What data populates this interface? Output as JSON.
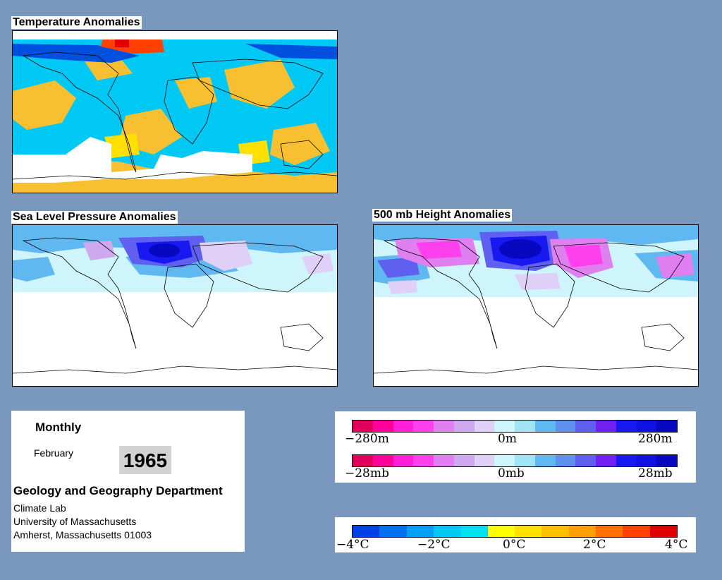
{
  "maps": {
    "temperature": {
      "title": "Temperature Anomalies"
    },
    "slp": {
      "title": "Sea Level Pressure Anomalies"
    },
    "height": {
      "title": "500 mb Height Anomalies"
    }
  },
  "info": {
    "period": "Monthly",
    "month": "February",
    "year": "1965",
    "department": "Geology and Geography Department",
    "lab": "Climate Lab",
    "university": "University of Massachusetts",
    "address": "Amherst, Massachusetts 01003"
  },
  "legend_height": {
    "left": "−280m",
    "center": "0m",
    "right": "280m",
    "colors": [
      "#e0005c",
      "#ff0098",
      "#ff20d8",
      "#ff40ee",
      "#e080f0",
      "#d0a8f0",
      "#e0d0f8",
      "#cdf5fb",
      "#a0e4f6",
      "#60b8f0",
      "#6090f0",
      "#6060f0",
      "#7020f0",
      "#1818f0",
      "#1010e0",
      "#0808c0"
    ]
  },
  "legend_pressure": {
    "left": "−28mb",
    "center": "0mb",
    "right": "28mb",
    "colors": [
      "#e0005c",
      "#ff0098",
      "#ff20d8",
      "#ff40ee",
      "#e080f0",
      "#d0a8f0",
      "#e0d0f8",
      "#cdf5fb",
      "#a0e4f6",
      "#60b8f0",
      "#6090f0",
      "#6060f0",
      "#7020f0",
      "#1818f0",
      "#1010e0",
      "#0808c0"
    ]
  },
  "legend_temperature": {
    "labels": [
      "−4°C",
      "−2°C",
      "0°C",
      "2°C",
      "4°C"
    ],
    "colors": [
      "#0040e8",
      "#0070f0",
      "#00a0f4",
      "#00c8f4",
      "#00e0f0",
      "#ffff00",
      "#ffe000",
      "#ffc000",
      "#ffa000",
      "#ff7000",
      "#ff4000",
      "#e00000"
    ]
  }
}
